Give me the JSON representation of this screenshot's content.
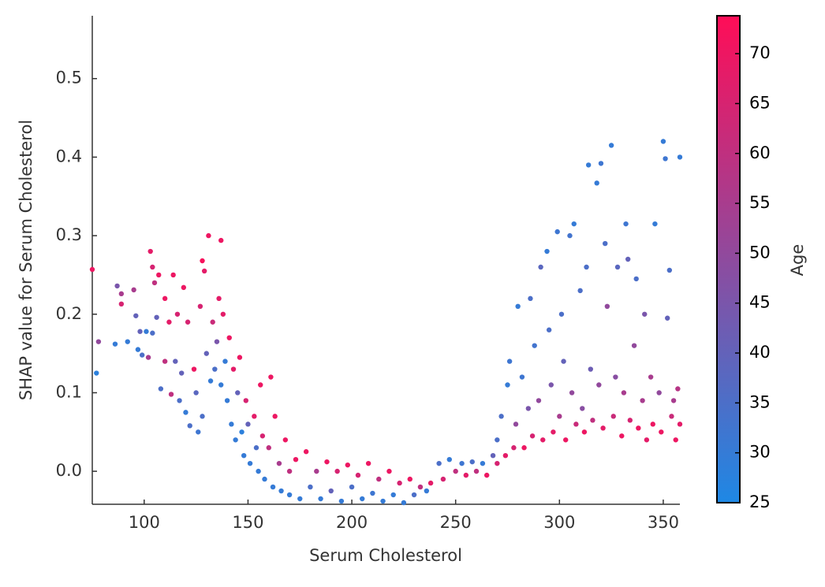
{
  "chart_data": {
    "type": "scatter",
    "xlabel": "Serum Cholesterol",
    "ylabel": "SHAP value for Serum Cholesterol",
    "colorbar_label": "Age",
    "xlim": [
      75,
      358
    ],
    "ylim": [
      -0.042,
      0.58
    ],
    "xticks": [
      100,
      150,
      200,
      250,
      300,
      350
    ],
    "yticks": [
      {
        "value": 0,
        "label": "0.0"
      },
      0.1,
      0.2,
      0.3,
      0.4,
      0.5
    ],
    "clim": [
      25,
      73.8
    ],
    "cticks": [
      25,
      30,
      35,
      40,
      45,
      50,
      55,
      60,
      65,
      70
    ],
    "colormap": [
      "#1E88E5",
      "#FF0D57"
    ],
    "x": [
      75,
      77,
      78,
      86,
      87,
      89,
      89,
      92,
      95,
      96,
      97,
      98,
      99,
      101,
      102,
      103,
      104,
      104,
      105,
      106,
      107,
      108,
      110,
      110,
      112,
      113,
      114,
      115,
      116,
      117,
      118,
      119,
      120,
      121,
      122,
      124,
      125,
      126,
      127,
      128,
      128,
      129,
      130,
      131,
      132,
      133,
      134,
      135,
      136,
      137,
      137,
      138,
      139,
      140,
      141,
      142,
      143,
      144,
      145,
      146,
      147,
      148,
      149,
      150,
      151,
      153,
      154,
      155,
      156,
      157,
      158,
      160,
      161,
      162,
      163,
      165,
      166,
      168,
      170,
      170,
      173,
      175,
      178,
      180,
      183,
      185,
      188,
      190,
      193,
      195,
      198,
      200,
      203,
      205,
      208,
      210,
      213,
      215,
      218,
      220,
      223,
      225,
      228,
      230,
      233,
      236,
      238,
      242,
      244,
      247,
      250,
      253,
      255,
      258,
      260,
      263,
      265,
      268,
      270,
      270,
      272,
      274,
      275,
      276,
      278,
      279,
      280,
      282,
      283,
      285,
      286,
      287,
      288,
      290,
      291,
      292,
      294,
      295,
      296,
      297,
      299,
      300,
      301,
      302,
      303,
      305,
      306,
      307,
      308,
      310,
      311,
      312,
      313,
      314,
      315,
      316,
      318,
      319,
      320,
      321,
      322,
      323,
      325,
      326,
      327,
      328,
      330,
      331,
      332,
      333,
      334,
      336,
      337,
      338,
      340,
      341,
      342,
      344,
      345,
      346,
      348,
      349,
      350,
      351,
      352,
      353,
      354,
      355,
      356,
      357,
      358,
      358
    ],
    "y": [
      0.257,
      0.125,
      0.165,
      0.162,
      0.236,
      0.226,
      0.213,
      0.165,
      0.231,
      0.198,
      0.155,
      0.178,
      0.148,
      0.178,
      0.145,
      0.28,
      0.176,
      0.26,
      0.24,
      0.196,
      0.25,
      0.105,
      0.22,
      0.14,
      0.19,
      0.098,
      0.25,
      0.14,
      0.2,
      0.09,
      0.125,
      0.234,
      0.075,
      0.19,
      0.058,
      0.13,
      0.1,
      0.05,
      0.21,
      0.07,
      0.268,
      0.255,
      0.15,
      0.3,
      0.115,
      0.19,
      0.13,
      0.165,
      0.22,
      0.294,
      0.11,
      0.2,
      0.14,
      0.09,
      0.17,
      0.06,
      0.13,
      0.04,
      0.1,
      0.145,
      0.05,
      0.02,
      0.09,
      0.06,
      0.01,
      0.07,
      0.03,
      0.0,
      0.11,
      0.045,
      -0.01,
      0.03,
      0.12,
      -0.02,
      0.07,
      0.01,
      -0.025,
      0.04,
      -0.03,
      0.0,
      0.015,
      -0.035,
      0.025,
      -0.02,
      0.0,
      -0.035,
      0.012,
      -0.025,
      0.0,
      -0.038,
      0.008,
      -0.02,
      -0.005,
      -0.035,
      0.01,
      -0.028,
      -0.01,
      -0.038,
      0.0,
      -0.03,
      -0.015,
      -0.04,
      -0.01,
      -0.03,
      -0.02,
      -0.025,
      -0.015,
      0.01,
      -0.01,
      0.015,
      0.0,
      0.01,
      -0.005,
      0.012,
      0.0,
      0.01,
      -0.005,
      0.02,
      0.01,
      0.04,
      0.07,
      0.02,
      0.11,
      0.14,
      0.03,
      0.06,
      0.21,
      0.12,
      0.03,
      0.08,
      0.22,
      0.045,
      0.16,
      0.09,
      0.26,
      0.04,
      0.28,
      0.18,
      0.11,
      0.05,
      0.305,
      0.07,
      0.2,
      0.14,
      0.04,
      0.3,
      0.1,
      0.315,
      0.06,
      0.23,
      0.08,
      0.05,
      0.26,
      0.39,
      0.13,
      0.065,
      0.367,
      0.11,
      0.392,
      0.055,
      0.29,
      0.21,
      0.415,
      0.07,
      0.12,
      0.26,
      0.045,
      0.1,
      0.315,
      0.27,
      0.065,
      0.16,
      0.245,
      0.055,
      0.09,
      0.2,
      0.04,
      0.12,
      0.06,
      0.315,
      0.1,
      0.05,
      0.42,
      0.398,
      0.195,
      0.256,
      0.07,
      0.09,
      0.04,
      0.105,
      0.4,
      0.06
    ],
    "color_values": [
      70,
      28,
      50,
      30,
      45,
      55,
      65,
      30,
      55,
      40,
      30,
      40,
      35,
      30,
      55,
      68,
      35,
      65,
      60,
      40,
      70,
      35,
      70,
      60,
      68,
      60,
      70,
      40,
      65,
      35,
      40,
      70,
      30,
      65,
      35,
      70,
      38,
      32,
      65,
      35,
      72,
      68,
      40,
      70,
      30,
      62,
      35,
      45,
      68,
      70,
      30,
      68,
      30,
      30,
      70,
      30,
      68,
      30,
      40,
      70,
      28,
      30,
      65,
      40,
      30,
      68,
      35,
      30,
      70,
      65,
      30,
      60,
      70,
      30,
      70,
      55,
      30,
      70,
      30,
      60,
      70,
      30,
      70,
      35,
      55,
      30,
      70,
      40,
      65,
      30,
      70,
      35,
      65,
      30,
      70,
      32,
      60,
      30,
      70,
      30,
      65,
      30,
      70,
      35,
      60,
      30,
      68,
      35,
      65,
      30,
      60,
      32,
      68,
      35,
      60,
      30,
      70,
      40,
      65,
      35,
      35,
      68,
      30,
      32,
      65,
      50,
      30,
      32,
      70,
      45,
      35,
      65,
      33,
      50,
      38,
      68,
      30,
      35,
      45,
      68,
      32,
      55,
      35,
      40,
      70,
      33,
      50,
      30,
      62,
      35,
      48,
      70,
      35,
      30,
      42,
      60,
      30,
      50,
      32,
      68,
      35,
      50,
      30,
      62,
      48,
      38,
      70,
      55,
      32,
      40,
      65,
      50,
      35,
      70,
      55,
      45,
      68,
      55,
      70,
      30,
      50,
      70,
      30,
      32,
      40,
      35,
      62,
      55,
      70,
      58,
      30,
      68
    ]
  }
}
